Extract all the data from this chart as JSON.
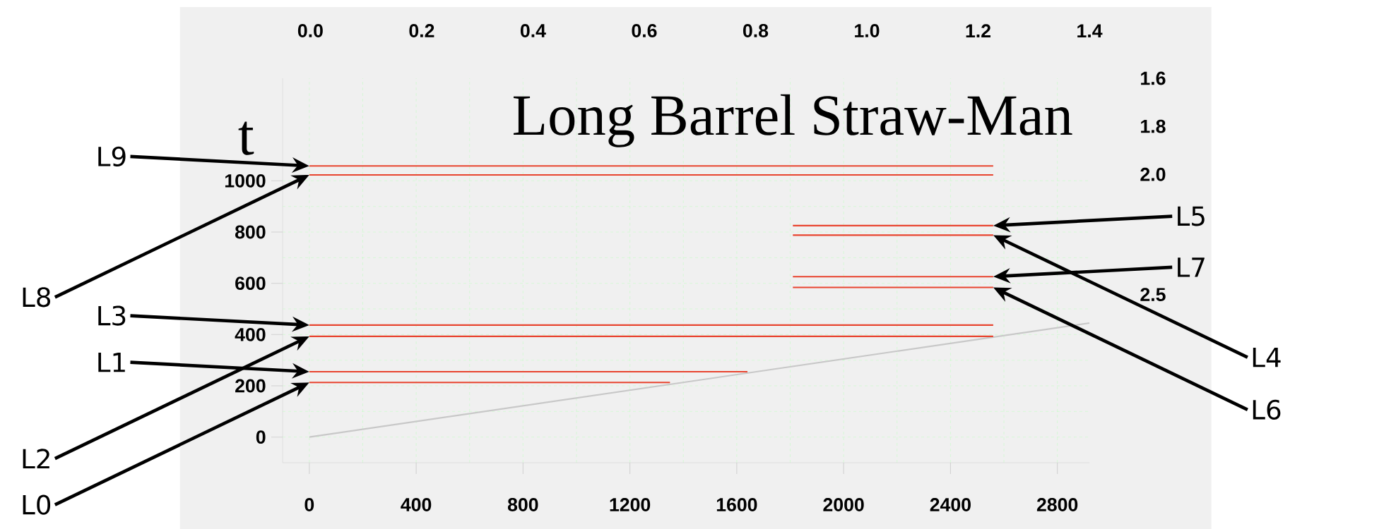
{
  "chart_data": {
    "type": "line",
    "title": "Long Barrel Straw-Man",
    "ylabel": "t",
    "xlim": [
      -100,
      2920
    ],
    "ylim": [
      -100,
      1400
    ],
    "xticks": [
      0,
      400,
      800,
      1200,
      1600,
      2000,
      2400,
      2800
    ],
    "yticks": [
      0,
      200,
      400,
      600,
      800,
      1000
    ],
    "x2lim": [
      -0.05,
      1.4
    ],
    "x2ticks": [
      {
        "value": 0,
        "label": "0.0"
      },
      0.2,
      0.4,
      0.6,
      0.8,
      {
        "value": 1,
        "label": "1.0"
      },
      1.2,
      1.4
    ],
    "y2lim": [
      3.2,
      1.6
    ],
    "y2ticks": [
      1.6,
      1.8,
      {
        "value": 2,
        "label": "2.0"
      },
      2.5
    ],
    "grid": true,
    "marker": "none",
    "line_style": "solid",
    "series": [
      {
        "color": "#c8c8c8",
        "x": [
          0,
          2920
        ],
        "values": [
          0,
          445
        ]
      },
      {
        "color": "#e8442f",
        "x": [
          0,
          1350
        ],
        "values": [
          213,
          213
        ]
      },
      {
        "color": "#e8442f",
        "x": [
          0,
          1640
        ],
        "values": [
          255,
          255
        ]
      },
      {
        "color": "#e8442f",
        "x": [
          0,
          2560
        ],
        "values": [
          393,
          393
        ]
      },
      {
        "color": "#e8442f",
        "x": [
          0,
          2560
        ],
        "values": [
          437,
          437
        ]
      },
      {
        "color": "#e8442f",
        "x": [
          1810,
          2560
        ],
        "values": [
          788,
          788
        ]
      },
      {
        "color": "#e8442f",
        "x": [
          1810,
          2560
        ],
        "values": [
          825,
          825
        ]
      },
      {
        "color": "#e8442f",
        "x": [
          1810,
          2560
        ],
        "values": [
          584,
          584
        ]
      },
      {
        "color": "#e8442f",
        "x": [
          1810,
          2560
        ],
        "values": [
          626,
          626
        ]
      },
      {
        "color": "#e8442f",
        "x": [
          0,
          2560
        ],
        "values": [
          1023,
          1023
        ]
      },
      {
        "color": "#e8442f",
        "x": [
          0,
          2560
        ],
        "values": [
          1058,
          1058
        ]
      }
    ],
    "annotations": [
      "L0",
      "L1",
      "L2",
      "L3",
      "L4",
      "L5",
      "L6",
      "L7",
      "L8",
      "L9"
    ]
  }
}
